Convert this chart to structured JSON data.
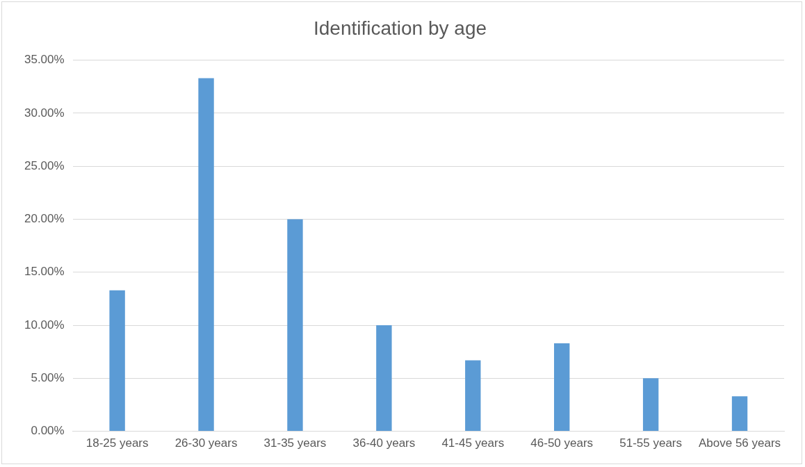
{
  "chart_data": {
    "type": "bar",
    "title": "Identification by age",
    "categories": [
      "18-25 years",
      "26-30 years",
      "31-35 years",
      "36-40 years",
      "41-45 years",
      "46-50 years",
      "51-55 years",
      "Above 56 years"
    ],
    "values": [
      13.3,
      33.3,
      20,
      10,
      6.7,
      8.3,
      5,
      3.3
    ],
    "color": "#5b9bd5",
    "ylim": [
      0,
      35
    ],
    "yticks": [
      {
        "value": 0,
        "label": "0.00%"
      },
      {
        "value": 5,
        "label": "5.00%"
      },
      {
        "value": 10,
        "label": "10.00%"
      },
      {
        "value": 15,
        "label": "15.00%"
      },
      {
        "value": 20,
        "label": "20.00%"
      },
      {
        "value": 25,
        "label": "25.00%"
      },
      {
        "value": 30,
        "label": "30.00%"
      },
      {
        "value": 35,
        "label": "35.00%"
      }
    ],
    "grid": "y",
    "legend": false
  }
}
